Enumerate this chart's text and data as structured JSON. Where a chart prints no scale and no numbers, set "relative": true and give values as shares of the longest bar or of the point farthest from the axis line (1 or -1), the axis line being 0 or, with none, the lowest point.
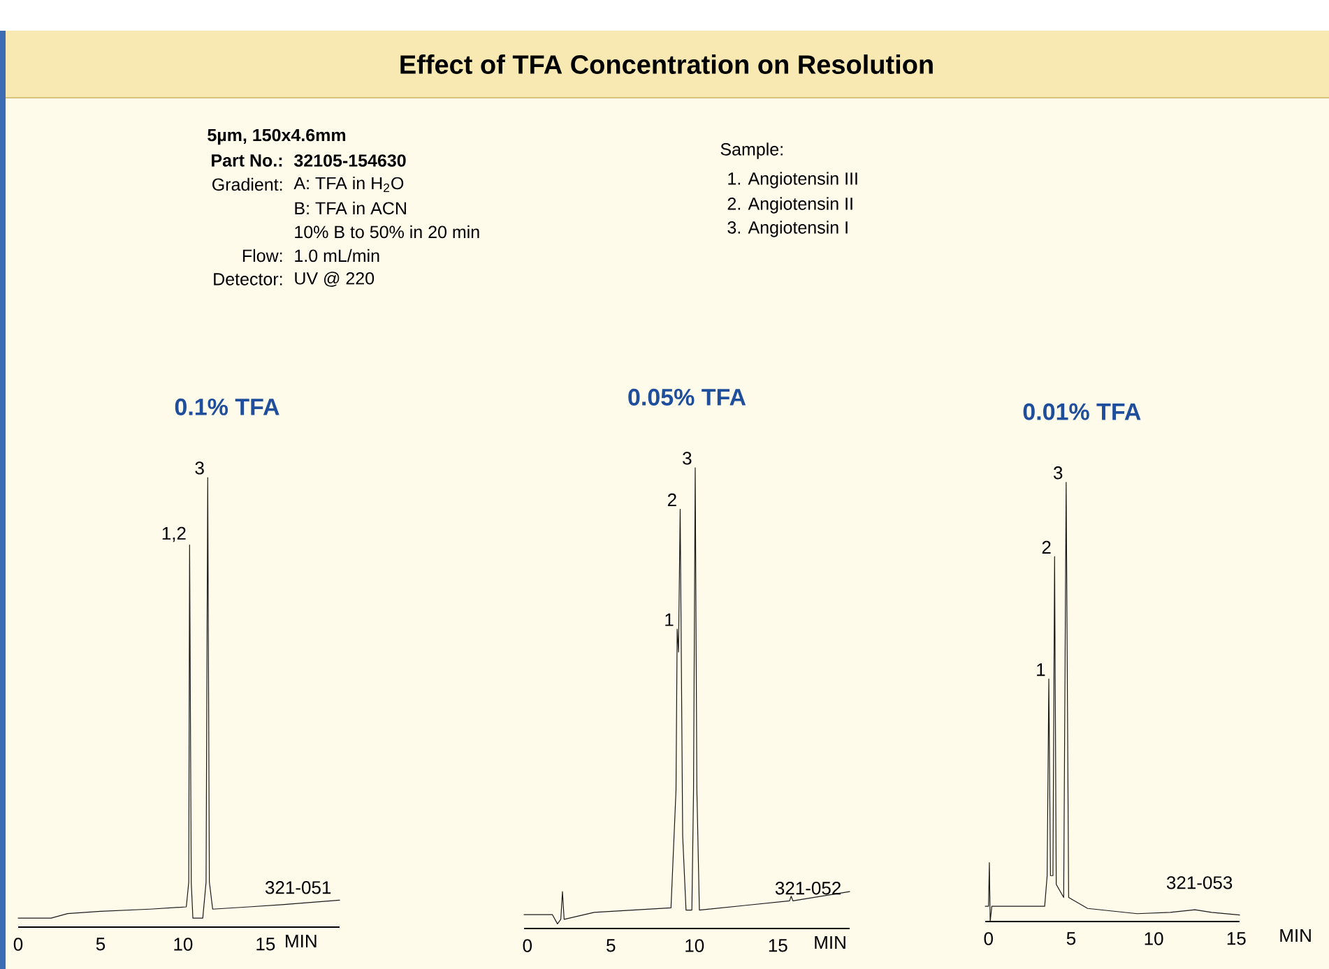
{
  "chart_data": [
    {
      "type": "other",
      "title": "Effect of TFA Concentration on Resolution",
      "annotations": [
        "5µm, 150x4.6mm",
        "Part No.:",
        "32105-154630",
        "Gradient:",
        "A: TFA in H$_{2}$O",
        "B: TFA in ACN",
        "10% B to 50% in 20 min",
        "Flow:",
        "1.0 mL/min",
        "Detector:",
        "UV @ 220",
        "Sample:",
        "1.  Angiotensin III",
        "2.  Angiotensin II",
        "3.  Angiotensin I"
      ]
    },
    {
      "type": "line",
      "title": "0.1% TFA",
      "xlabel": "MIN",
      "relative": true,
      "xlim": [
        0,
        19.5
      ],
      "xticks": [
        0,
        5,
        10,
        15
      ],
      "x": [
        0,
        2,
        3,
        5,
        8,
        10.2,
        10.35,
        10.4,
        10.5,
        10.6,
        11.2,
        11.4,
        11.5,
        11.6,
        11.8,
        14,
        16,
        19.5
      ],
      "series": [
        {
          "color": "#1a1a1a",
          "values": [
            0.02,
            0.02,
            0.03,
            0.035,
            0.04,
            0.045,
            0.1,
            0.85,
            0.1,
            0.02,
            0.02,
            0.1,
            1,
            0.1,
            0.04,
            0.045,
            0.05,
            0.06
          ]
        }
      ],
      "annotations": [
        {
          "text": "1,2",
          "x": 10.4,
          "y": 0.85
        },
        {
          "text": "3",
          "x": 11.5,
          "y": 1
        },
        "321-051"
      ]
    },
    {
      "type": "line",
      "title": "0.05% TFA",
      "xlabel": "MIN",
      "relative": true,
      "xlim": [
        -0.2,
        19.3
      ],
      "xticks": [
        0,
        5,
        10,
        15
      ],
      "x": [
        -0.2,
        1.5,
        1.8,
        2.0,
        2.1,
        2.2,
        4,
        8.6,
        8.9,
        8.97,
        9.05,
        9.15,
        9.3,
        9.5,
        9.85,
        9.95,
        10.05,
        10.15,
        10.3,
        13,
        15.7,
        15.8,
        15.9,
        19.3
      ],
      "series": [
        {
          "color": "#1a1a1a",
          "values": [
            0.03,
            0.03,
            0.01,
            0.02,
            0.08,
            0.02,
            0.035,
            0.045,
            0.3,
            0.65,
            0.6,
            0.91,
            0.2,
            0.04,
            0.04,
            0.3,
            1,
            0.3,
            0.04,
            0.05,
            0.06,
            0.07,
            0.06,
            0.08
          ]
        }
      ],
      "annotations": [
        {
          "text": "1",
          "x": 8.97,
          "y": 0.65
        },
        {
          "text": "2",
          "x": 9.15,
          "y": 0.91
        },
        {
          "text": "3",
          "x": 10.05,
          "y": 1
        },
        "321-052"
      ]
    },
    {
      "type": "line",
      "title": "0.01% TFA",
      "xlabel": "MIN",
      "relative": true,
      "xlim": [
        -0.2,
        15.2
      ],
      "xticks": [
        0,
        5,
        10,
        15
      ],
      "x": [
        -0.2,
        0,
        0.05,
        0.1,
        0.2,
        3.4,
        3.55,
        3.65,
        3.75,
        3.9,
        4.0,
        4.1,
        4.55,
        4.7,
        4.85,
        6,
        9,
        11,
        12.5,
        13.5,
        15.2
      ],
      "series": [
        {
          "color": "#1a1a1a",
          "values": [
            0.03,
            0.03,
            0.13,
            -0.005,
            0.03,
            0.03,
            0.1,
            0.55,
            0.1,
            0.1,
            0.83,
            0.08,
            0.05,
            1,
            0.05,
            0.025,
            0.013,
            0.016,
            0.022,
            0.016,
            0.01
          ]
        }
      ],
      "annotations": [
        {
          "text": "1",
          "x": 3.65,
          "y": 0.55
        },
        {
          "text": "2",
          "x": 4.0,
          "y": 0.83
        },
        {
          "text": "3",
          "x": 4.7,
          "y": 1
        },
        "321-053"
      ]
    }
  ]
}
